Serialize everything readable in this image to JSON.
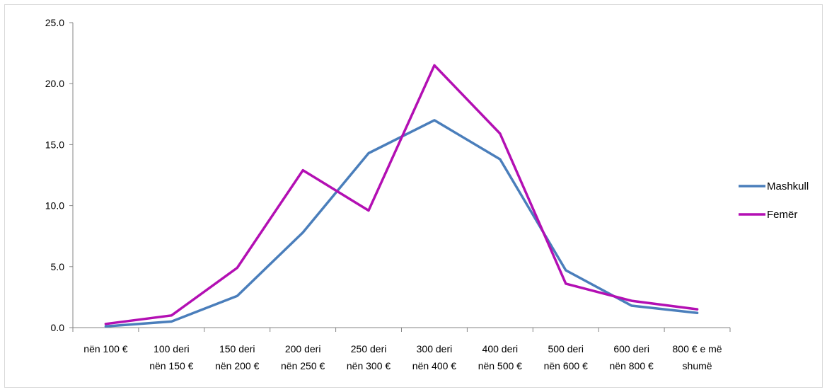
{
  "chart_data": {
    "type": "line",
    "categories": [
      [
        "nën  100 €"
      ],
      [
        "100 deri",
        "nën 150 €"
      ],
      [
        "150 deri",
        "nën 200 €"
      ],
      [
        "200 deri",
        "nën 250 €"
      ],
      [
        "250 deri",
        "nën 300 €"
      ],
      [
        "300 deri",
        "nën 400 €"
      ],
      [
        "400 deri",
        "nën 500 €"
      ],
      [
        "500 deri",
        "nën 600 €"
      ],
      [
        "600 deri",
        "nën 800 €"
      ],
      [
        "800 € e më",
        "shumë"
      ]
    ],
    "series": [
      {
        "name": "Mashkull",
        "color": "#4a7ebb",
        "values": [
          0.1,
          0.5,
          2.6,
          7.8,
          14.3,
          17.0,
          13.8,
          4.7,
          1.8,
          1.2
        ]
      },
      {
        "name": "Femër",
        "color": "#b30fb3",
        "values": [
          0.3,
          1.0,
          4.9,
          12.9,
          9.6,
          21.5,
          15.9,
          3.6,
          2.2,
          1.5
        ]
      }
    ],
    "yticks": [
      "0.0",
      "5.0",
      "10.0",
      "15.0",
      "20.0",
      "25.0"
    ],
    "ylim": [
      0,
      25
    ],
    "legend_position": "right",
    "grid": false,
    "title": "",
    "xlabel": "",
    "ylabel": ""
  }
}
